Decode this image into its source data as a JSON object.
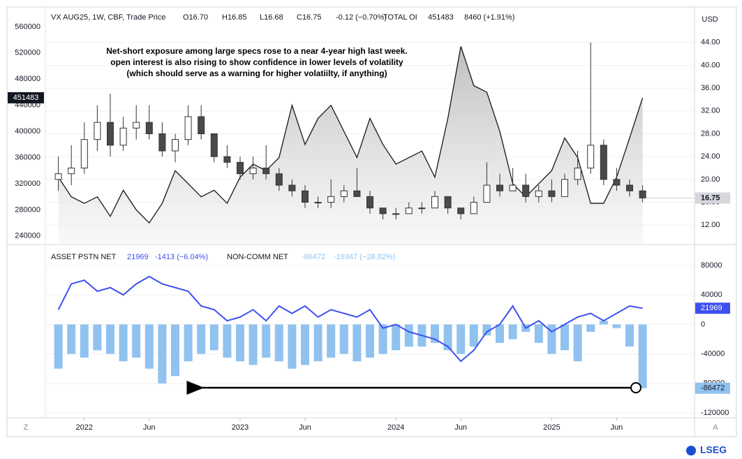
{
  "chart_data": [
    {
      "type": "candlestick",
      "title": "VX AUG25, 1W, CBF, Trade Price",
      "ohlc_header": [
        "O16.70",
        "H16.85",
        "L16.68",
        "C16.75",
        "-0.12 (−0.70%)"
      ],
      "oi_header": [
        "TOTAL OI",
        "451483",
        "8460 (+1.91%)"
      ],
      "annotation": [
        "Net-short exposure among large specs rose to a near 4-year high last week.",
        "open interest is also rising to show confidence in lower levels of volatility",
        "(which should serve as a warning for higher volatiilty, if anything)"
      ],
      "currency": "USD",
      "x": [
        "2021-11",
        "2021-12",
        "2022-01",
        "2022-02",
        "2022-03",
        "2022-04",
        "2022-05",
        "2022-06",
        "2022-07",
        "2022-08",
        "2022-09",
        "2022-10",
        "2022-11",
        "2022-12",
        "2023-01",
        "2023-02",
        "2023-03",
        "2023-04",
        "2023-05",
        "2023-06",
        "2023-07",
        "2023-08",
        "2023-09",
        "2023-10",
        "2023-11",
        "2023-12",
        "2024-01",
        "2024-02",
        "2024-03",
        "2024-04",
        "2024-05",
        "2024-06",
        "2024-07",
        "2024-08",
        "2024-09",
        "2024-10",
        "2024-11",
        "2024-12",
        "2025-01",
        "2025-02",
        "2025-03",
        "2025-04",
        "2025-05",
        "2025-06",
        "2025-07",
        "2025-08"
      ],
      "xlim": [
        "2021-10",
        "2025-12"
      ],
      "ylim": [
        227000,
        585000
      ],
      "yticks": [
        240000,
        280000,
        320000,
        360000,
        400000,
        440000,
        480000,
        520000,
        560000
      ],
      "y2lim": [
        8.6,
        49.6
      ],
      "y2ticks": [
        {
          "value": 12,
          "label": "12.00"
        },
        {
          "value": 16,
          "label": "16.00"
        },
        {
          "value": 20,
          "label": "20.00"
        },
        {
          "value": 24,
          "label": "24.00"
        },
        {
          "value": 28,
          "label": "28.00"
        },
        {
          "value": 32,
          "label": "32.00"
        },
        {
          "value": 36,
          "label": "36.00"
        },
        {
          "value": 40,
          "label": "40.00"
        },
        {
          "value": 44,
          "label": "44.00"
        }
      ],
      "grid": true,
      "candles": {
        "axis": "y2",
        "up_color": "#ffffff",
        "down_color": "#4a4a4a",
        "edge_color": "#333333",
        "open": [
          20,
          21,
          22,
          27,
          30,
          26,
          29,
          30,
          28,
          25,
          27,
          31,
          28,
          24,
          23,
          21,
          22,
          21,
          19,
          18,
          16,
          16,
          17,
          18,
          17,
          15,
          14,
          14,
          15,
          15,
          17,
          15,
          14,
          16,
          19,
          18,
          19,
          17,
          18,
          17,
          20,
          22,
          26,
          20,
          19,
          18
        ],
        "high": [
          24,
          26,
          30,
          33,
          35,
          31,
          33,
          33,
          30,
          28,
          33,
          33,
          28,
          26,
          24,
          24,
          26,
          22,
          20,
          19,
          17,
          20,
          19,
          22,
          18,
          15,
          15,
          16,
          16,
          18,
          17,
          15,
          17,
          23,
          21,
          22,
          21,
          19,
          20,
          21,
          25,
          44,
          27,
          22,
          20,
          19
        ],
        "low": [
          18,
          19,
          21,
          25,
          24,
          25,
          27,
          27,
          24,
          23,
          26,
          27,
          23,
          22,
          20,
          20,
          20,
          18,
          17,
          15,
          15,
          15,
          16,
          17,
          14,
          13,
          13,
          14,
          14,
          15,
          14,
          13,
          14,
          16,
          17,
          18,
          16,
          16,
          16,
          17,
          19,
          21,
          19,
          18,
          17,
          16
        ],
        "close": [
          21,
          22,
          27,
          30,
          26,
          29,
          30,
          28,
          25,
          27,
          31,
          28,
          24,
          23,
          21,
          22,
          21,
          19,
          18,
          16,
          16,
          17,
          18,
          17,
          15,
          14,
          14,
          15,
          15,
          17,
          15,
          14,
          16,
          19,
          18,
          19,
          17,
          18,
          17,
          20,
          22,
          26,
          20,
          19,
          18,
          16.75
        ]
      },
      "series": [
        {
          "name": "TOTAL OI",
          "type": "area",
          "axis": "y",
          "color": "#131722",
          "values": [
            330000,
            300000,
            290000,
            300000,
            270000,
            310000,
            280000,
            260000,
            290000,
            340000,
            320000,
            300000,
            310000,
            290000,
            330000,
            350000,
            340000,
            360000,
            440000,
            380000,
            420000,
            440000,
            400000,
            360000,
            420000,
            380000,
            350000,
            360000,
            370000,
            330000,
            420000,
            530000,
            470000,
            460000,
            400000,
            320000,
            300000,
            320000,
            340000,
            390000,
            360000,
            290000,
            290000,
            330000,
            390000,
            451483
          ]
        }
      ]
    },
    {
      "type": "line",
      "x": [
        "2021-11",
        "2021-12",
        "2022-01",
        "2022-02",
        "2022-03",
        "2022-04",
        "2022-05",
        "2022-06",
        "2022-07",
        "2022-08",
        "2022-09",
        "2022-10",
        "2022-11",
        "2022-12",
        "2023-01",
        "2023-02",
        "2023-03",
        "2023-04",
        "2023-05",
        "2023-06",
        "2023-07",
        "2023-08",
        "2023-09",
        "2023-10",
        "2023-11",
        "2023-12",
        "2024-01",
        "2024-02",
        "2024-03",
        "2024-04",
        "2024-05",
        "2024-06",
        "2024-07",
        "2024-08",
        "2024-09",
        "2024-10",
        "2024-11",
        "2024-12",
        "2025-01",
        "2025-02",
        "2025-03",
        "2025-04",
        "2025-05",
        "2025-06",
        "2025-07",
        "2025-08"
      ],
      "xlim": [
        "2021-10",
        "2025-12"
      ],
      "xticks": [
        {
          "value": "2022-01",
          "label": "2022"
        },
        {
          "value": "2022-06",
          "label": "Jun"
        },
        {
          "value": "2023-01",
          "label": "2023"
        },
        {
          "value": "2023-06",
          "label": "Jun"
        },
        {
          "value": "2024-01",
          "label": "2024"
        },
        {
          "value": "2024-06",
          "label": "Jun"
        },
        {
          "value": "2025-01",
          "label": "2025"
        },
        {
          "value": "2025-06",
          "label": "Jun"
        }
      ],
      "ylim": [
        -126600,
        106500
      ],
      "yticks": [
        -120000,
        -80000,
        -40000,
        0,
        40000,
        80000
      ],
      "grid": true,
      "buttons": [
        "Z",
        "A"
      ],
      "brand": "LSEG",
      "series": [
        {
          "name": "NON-COMM NET",
          "type": "bar",
          "color": "#90c2f0",
          "change": "-19347 (−28.82%)",
          "values": [
            -60000,
            -40000,
            -45000,
            -35000,
            -40000,
            -50000,
            -45000,
            -60000,
            -80000,
            -70000,
            -50000,
            -40000,
            -35000,
            -45000,
            -50000,
            -55000,
            -45000,
            -50000,
            -60000,
            -55000,
            -50000,
            -45000,
            -40000,
            -50000,
            -45000,
            -40000,
            -35000,
            -30000,
            -30000,
            -25000,
            -35000,
            -40000,
            -30000,
            -15000,
            -25000,
            -20000,
            -10000,
            -25000,
            -40000,
            -35000,
            -50000,
            -10000,
            5000,
            -5000,
            -30000,
            -86472
          ]
        },
        {
          "name": "ASSET PSTN NET",
          "type": "line",
          "color": "#3d4ff0",
          "change": "-1413 (−6.04%)",
          "values": [
            20000,
            55000,
            60000,
            45000,
            50000,
            40000,
            55000,
            65000,
            55000,
            50000,
            45000,
            25000,
            20000,
            5000,
            10000,
            20000,
            5000,
            25000,
            15000,
            25000,
            10000,
            20000,
            15000,
            10000,
            20000,
            -5000,
            0,
            -10000,
            -15000,
            -20000,
            -30000,
            -50000,
            -35000,
            -10000,
            0,
            25000,
            -5000,
            5000,
            -10000,
            0,
            10000,
            15000,
            5000,
            15000,
            25000,
            21969
          ]
        }
      ]
    }
  ]
}
